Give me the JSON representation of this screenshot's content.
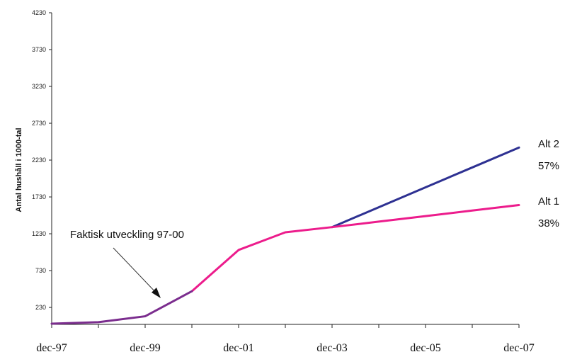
{
  "chart_data": {
    "type": "line",
    "title": "",
    "xlabel": "",
    "ylabel": "Antal hushåll i 1000-tal",
    "x": [
      "dec-97",
      "dec-98",
      "dec-99",
      "dec-00",
      "dec-01",
      "dec-02",
      "dec-03",
      "dec-04",
      "dec-05",
      "dec-06",
      "dec-07"
    ],
    "xtick_labels": [
      "dec-97",
      "dec-99",
      "dec-01",
      "dec-03",
      "dec-05",
      "dec-07"
    ],
    "yticks": [
      230,
      730,
      1230,
      1730,
      2230,
      2730,
      3230,
      3730,
      4230
    ],
    "ylim": [
      0,
      4230
    ],
    "grid": false,
    "series": [
      {
        "name": "Alt 2",
        "color": "#2e3192",
        "values": [
          null,
          null,
          null,
          null,
          null,
          null,
          1320,
          1590,
          1860,
          2130,
          2400
        ]
      },
      {
        "name": "Alt 1",
        "color": "#ec1c8c",
        "values": [
          null,
          null,
          null,
          450,
          1010,
          1250,
          1320,
          1395,
          1470,
          1545,
          1620
        ]
      },
      {
        "name": "Faktisk utveckling 97-00",
        "color": "#7b2d8e",
        "values": [
          10,
          30,
          110,
          450,
          null,
          null,
          null,
          null,
          null,
          null,
          null
        ]
      }
    ],
    "annotations": [
      {
        "text": "Faktisk utveckling 97-00"
      }
    ],
    "side_labels": [
      {
        "series": "Alt 2",
        "name": "Alt 2",
        "pct": "57%"
      },
      {
        "series": "Alt 1",
        "name": "Alt 1",
        "pct": "38%"
      }
    ]
  }
}
